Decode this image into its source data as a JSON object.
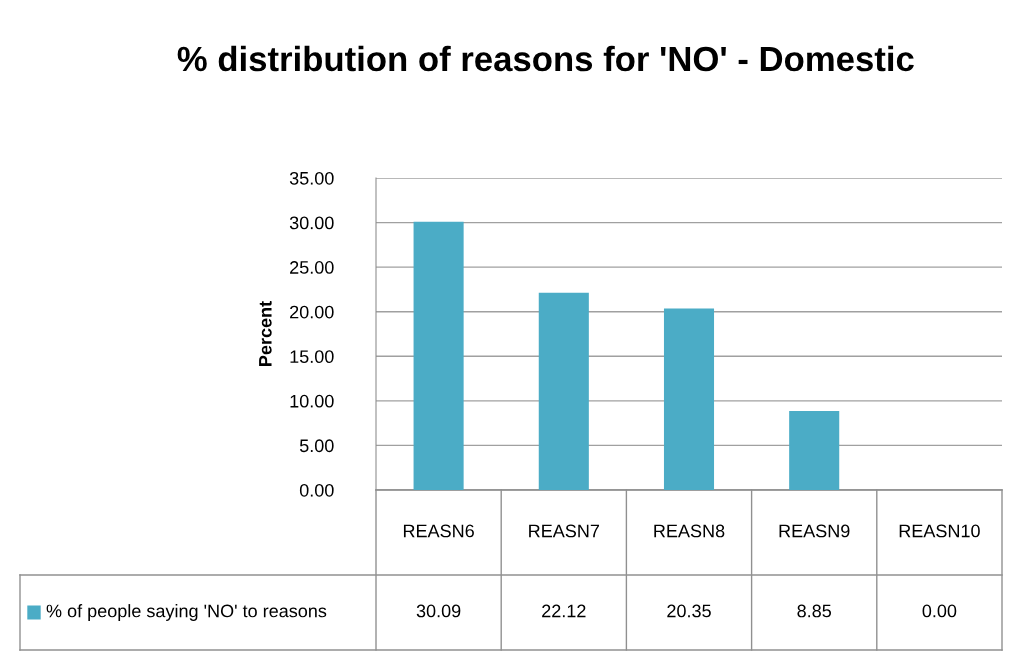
{
  "chart_data": {
    "type": "bar",
    "title": "% distribution of reasons for 'NO' - Domestic",
    "ylabel": "Percent",
    "categories": [
      "REASN6",
      "REASN7",
      "REASN8",
      "REASN9",
      "REASN10"
    ],
    "series": [
      {
        "name": "% of people saying 'NO' to reasons",
        "color": "#4bacc6",
        "values": [
          30.09,
          22.12,
          20.35,
          8.85,
          0.0
        ],
        "value_labels": [
          "30.09",
          "22.12",
          "20.35",
          "8.85",
          "0.00"
        ]
      }
    ],
    "ylim": [
      0,
      35
    ],
    "yticks": [
      {
        "value": 0,
        "label": "0.00"
      },
      {
        "value": 5,
        "label": "5.00"
      },
      {
        "value": 10,
        "label": "10.00"
      },
      {
        "value": 15,
        "label": "15.00"
      },
      {
        "value": 20,
        "label": "20.00"
      },
      {
        "value": 25,
        "label": "25.00"
      },
      {
        "value": 30,
        "label": "30.00"
      },
      {
        "value": 35,
        "label": "35.00"
      }
    ],
    "grid": "y",
    "legend": "bottom"
  }
}
